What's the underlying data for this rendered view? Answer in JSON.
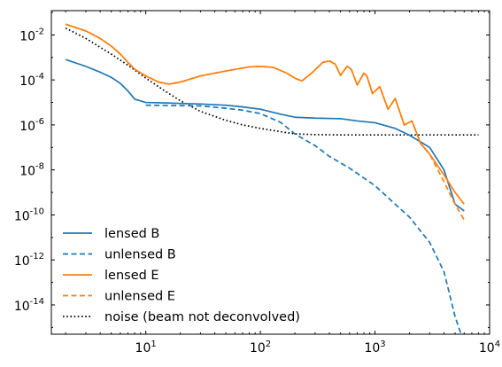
{
  "chart_data": {
    "type": "line",
    "title": "",
    "xlabel": "",
    "ylabel": "",
    "xscale": "log",
    "yscale": "log",
    "xlim": [
      1.5,
      10000
    ],
    "ylim": [
      5e-16,
      0.12
    ],
    "legend_position": "lower-left",
    "grid": false,
    "x_ticks": [
      {
        "value": 10,
        "label": "10",
        "exp": "1"
      },
      {
        "value": 100,
        "label": "10",
        "exp": "2"
      },
      {
        "value": 1000,
        "label": "10",
        "exp": "3"
      },
      {
        "value": 10000,
        "label": "10",
        "exp": "4"
      }
    ],
    "y_ticks": [
      {
        "value": 0.01,
        "label": "10",
        "exp": "-2"
      },
      {
        "value": 0.0001,
        "label": "10",
        "exp": "-4"
      },
      {
        "value": 1e-06,
        "label": "10",
        "exp": "-6"
      },
      {
        "value": 1e-08,
        "label": "10",
        "exp": "-8"
      },
      {
        "value": 1e-10,
        "label": "10",
        "exp": "-10"
      },
      {
        "value": 1e-12,
        "label": "10",
        "exp": "-12"
      },
      {
        "value": 1e-14,
        "label": "10",
        "exp": "-14"
      }
    ],
    "series": [
      {
        "name": "lensed B",
        "color": "#1f77b4",
        "style": "solid",
        "points": [
          [
            2,
            0.0008
          ],
          [
            3,
            0.0004
          ],
          [
            4,
            0.00022
          ],
          [
            5,
            0.00013
          ],
          [
            6,
            7e-05
          ],
          [
            7,
            3.2e-05
          ],
          [
            8,
            1.4e-05
          ],
          [
            10,
            1e-05
          ],
          [
            15,
            9.5e-06
          ],
          [
            20,
            9e-06
          ],
          [
            30,
            8.5e-06
          ],
          [
            50,
            7.5e-06
          ],
          [
            70,
            6.3e-06
          ],
          [
            100,
            5e-06
          ],
          [
            150,
            3e-06
          ],
          [
            200,
            2.2e-06
          ],
          [
            300,
            2e-06
          ],
          [
            500,
            1.9e-06
          ],
          [
            700,
            1.5e-06
          ],
          [
            1000,
            1.25e-06
          ],
          [
            1500,
            7e-07
          ],
          [
            2000,
            3.5e-07
          ],
          [
            3000,
            1e-07
          ],
          [
            4000,
            1e-08
          ],
          [
            5000,
            3e-10
          ],
          [
            6000,
            1.5e-10
          ]
        ]
      },
      {
        "name": "unlensed B",
        "color": "#1f77b4",
        "style": "dashed",
        "points": [
          [
            10,
            7.5e-06
          ],
          [
            20,
            7.2e-06
          ],
          [
            30,
            7e-06
          ],
          [
            50,
            5.5e-06
          ],
          [
            70,
            4.5e-06
          ],
          [
            100,
            3.2e-06
          ],
          [
            150,
            1.3e-06
          ],
          [
            200,
            4e-07
          ],
          [
            300,
            1.2e-07
          ],
          [
            400,
            4e-08
          ],
          [
            600,
            1.2e-08
          ],
          [
            1000,
            2e-09
          ],
          [
            1500,
            3e-10
          ],
          [
            2000,
            8e-11
          ],
          [
            3000,
            6e-12
          ],
          [
            4000,
            3e-13
          ],
          [
            5000,
            3e-15
          ],
          [
            6000,
            2e-16
          ]
        ]
      },
      {
        "name": "lensed E",
        "color": "#ff7f0e",
        "style": "solid",
        "points": [
          [
            2,
            0.03
          ],
          [
            3,
            0.015
          ],
          [
            4,
            0.007
          ],
          [
            5,
            0.0032
          ],
          [
            6,
            0.0014
          ],
          [
            7,
            0.0006
          ],
          [
            8,
            0.0003
          ],
          [
            10,
            0.00015
          ],
          [
            13,
            8e-05
          ],
          [
            16,
            6.5e-05
          ],
          [
            20,
            8e-05
          ],
          [
            30,
            0.00015
          ],
          [
            50,
            0.00025
          ],
          [
            80,
            0.00038
          ],
          [
            100,
            0.0004
          ],
          [
            130,
            0.00036
          ],
          [
            170,
            0.0002
          ],
          [
            200,
            0.00012
          ],
          [
            230,
            9e-05
          ],
          [
            280,
            0.0002
          ],
          [
            350,
            0.0006
          ],
          [
            400,
            0.0007
          ],
          [
            450,
            0.0005
          ],
          [
            500,
            0.00016
          ],
          [
            570,
            0.0004
          ],
          [
            620,
            0.0003
          ],
          [
            700,
            6e-05
          ],
          [
            800,
            0.0002
          ],
          [
            850,
            0.00015
          ],
          [
            950,
            2.5e-05
          ],
          [
            1100,
            5e-05
          ],
          [
            1300,
            5e-06
          ],
          [
            1500,
            1.5e-05
          ],
          [
            1800,
            1e-06
          ],
          [
            2100,
            1.5e-06
          ],
          [
            2500,
            1.5e-07
          ],
          [
            3000,
            5e-08
          ],
          [
            4000,
            6e-09
          ],
          [
            5000,
            1e-09
          ],
          [
            6000,
            3e-10
          ]
        ]
      },
      {
        "name": "unlensed E",
        "color": "#ff7f0e",
        "style": "dashed",
        "points": [
          [
            2,
            0.03
          ],
          [
            3,
            0.015
          ],
          [
            4,
            0.007
          ],
          [
            5,
            0.0032
          ],
          [
            6,
            0.0014
          ],
          [
            7,
            0.0006
          ],
          [
            8,
            0.0003
          ],
          [
            10,
            0.00015
          ],
          [
            13,
            8e-05
          ],
          [
            16,
            6.5e-05
          ],
          [
            20,
            8e-05
          ],
          [
            30,
            0.00015
          ],
          [
            50,
            0.00025
          ],
          [
            80,
            0.00038
          ],
          [
            100,
            0.0004
          ],
          [
            130,
            0.00036
          ],
          [
            170,
            0.0002
          ],
          [
            200,
            0.00012
          ],
          [
            230,
            9e-05
          ],
          [
            280,
            0.0002
          ],
          [
            350,
            0.0006
          ],
          [
            400,
            0.0007
          ],
          [
            450,
            0.0005
          ],
          [
            500,
            0.00016
          ],
          [
            570,
            0.0004
          ],
          [
            620,
            0.0003
          ],
          [
            700,
            6e-05
          ],
          [
            800,
            0.0002
          ],
          [
            850,
            0.00015
          ],
          [
            950,
            2.5e-05
          ],
          [
            1100,
            5e-05
          ],
          [
            1300,
            5e-06
          ],
          [
            1500,
            1.5e-05
          ],
          [
            1800,
            1e-06
          ],
          [
            2100,
            1.5e-06
          ],
          [
            2500,
            1.5e-07
          ],
          [
            3000,
            5e-08
          ],
          [
            4000,
            3e-09
          ],
          [
            5000,
            3e-10
          ],
          [
            6000,
            6e-11
          ]
        ]
      },
      {
        "name": "noise (beam not deconvolved)",
        "color": "#000000",
        "style": "dotted",
        "points": [
          [
            2,
            0.02
          ],
          [
            3,
            0.007
          ],
          [
            5,
            0.0014
          ],
          [
            7,
            0.00045
          ],
          [
            10,
            0.00012
          ],
          [
            15,
            3e-05
          ],
          [
            20,
            1.2e-05
          ],
          [
            30,
            4e-06
          ],
          [
            50,
            1.6e-06
          ],
          [
            70,
            1e-06
          ],
          [
            100,
            7e-07
          ],
          [
            150,
            5e-07
          ],
          [
            200,
            4e-07
          ],
          [
            300,
            3.7e-07
          ],
          [
            500,
            3.6e-07
          ],
          [
            1000,
            3.6e-07
          ],
          [
            2000,
            3.6e-07
          ],
          [
            4000,
            3.6e-07
          ],
          [
            8000,
            3.6e-07
          ]
        ]
      }
    ]
  }
}
